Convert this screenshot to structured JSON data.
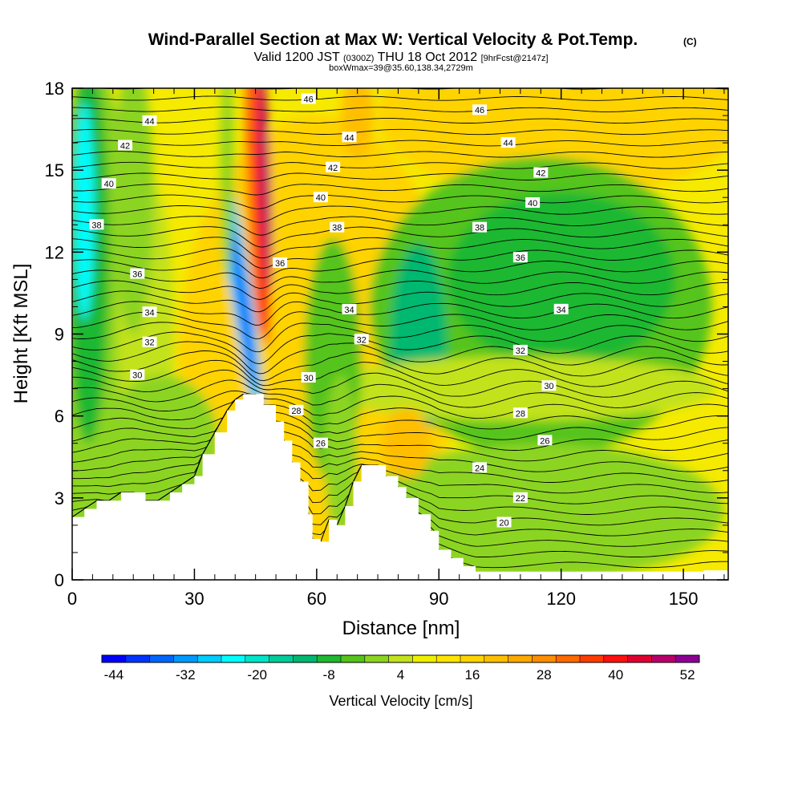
{
  "chart_data": {
    "type": "heatmap",
    "title": "Wind-Parallel Section at Max W: Vertical Velocity & Pot.Temp.",
    "title_mark": "(C)",
    "subtitle": {
      "part1": "Valid 1200 JST ",
      "part2": "(0300Z)",
      "part3": " THU 18 Oct 2012 ",
      "part4": "[9hrFcst@2147z]"
    },
    "subtitle2": "boxWmax=39@35.60,138.34,2729m",
    "xlabel": "Distance [nm]",
    "ylabel": "Height [Kft MSL]",
    "xlim": [
      0,
      161
    ],
    "ylim": [
      0,
      18
    ],
    "xticks": [
      "0",
      "30",
      "60",
      "90",
      "120",
      "150"
    ],
    "yticks": [
      "0",
      "3",
      "6",
      "9",
      "12",
      "15",
      "18"
    ],
    "colorbar": {
      "title": "Vertical Velocity [cm/s]",
      "tick_labels": [
        "-44",
        "-32",
        "-20",
        "-8",
        "4",
        "16",
        "28",
        "40",
        "52"
      ],
      "tick_values": [
        -44,
        -32,
        -20,
        -8,
        4,
        16,
        28,
        40,
        52
      ],
      "bin_width": 4,
      "colors": [
        "#0000ff",
        "#0033ff",
        "#0066ff",
        "#0099ff",
        "#00ccff",
        "#00ffff",
        "#00e5c8",
        "#00cc99",
        "#00b870",
        "#1fb830",
        "#55c41a",
        "#8cd420",
        "#c2e21c",
        "#eef000",
        "#ffe400",
        "#ffd300",
        "#ffbf00",
        "#ffa800",
        "#ff8d00",
        "#ff6a00",
        "#ff3c00",
        "#ff1010",
        "#e00030",
        "#b8006a",
        "#8c0094"
      ]
    },
    "terrain": [
      [
        0,
        2.3
      ],
      [
        3,
        2.6
      ],
      [
        6,
        2.9
      ],
      [
        9,
        2.9
      ],
      [
        12,
        3.2
      ],
      [
        15,
        3.2
      ],
      [
        18,
        2.9
      ],
      [
        21,
        2.9
      ],
      [
        24,
        3.2
      ],
      [
        27,
        3.5
      ],
      [
        30,
        3.8
      ],
      [
        32,
        4.6
      ],
      [
        35,
        5.4
      ],
      [
        38,
        6.2
      ],
      [
        40,
        6.6
      ],
      [
        42,
        6.8
      ],
      [
        45,
        6.8
      ],
      [
        47,
        6.4
      ],
      [
        50,
        5.8
      ],
      [
        52,
        5.1
      ],
      [
        54,
        4.3
      ],
      [
        56,
        3.6
      ],
      [
        58,
        2.4
      ],
      [
        59,
        1.5
      ],
      [
        61,
        1.4
      ],
      [
        63,
        2.2
      ],
      [
        65,
        2.0
      ],
      [
        67,
        2.7
      ],
      [
        69,
        3.6
      ],
      [
        71,
        4.2
      ],
      [
        75,
        4.2
      ],
      [
        77,
        3.8
      ],
      [
        80,
        3.4
      ],
      [
        82,
        3.0
      ],
      [
        85,
        2.4
      ],
      [
        88,
        1.8
      ],
      [
        90,
        1.1
      ],
      [
        93,
        0.8
      ],
      [
        96,
        0.5
      ],
      [
        99,
        0.3
      ],
      [
        110,
        0.3
      ],
      [
        130,
        0.3
      ],
      [
        150,
        0.3
      ],
      [
        155,
        0.35
      ],
      [
        161,
        0.35
      ]
    ],
    "theta_contour_labels": [
      {
        "value": "46",
        "x": 58,
        "y": 17.6
      },
      {
        "value": "46",
        "x": 100,
        "y": 17.2
      },
      {
        "value": "44",
        "x": 19,
        "y": 16.8
      },
      {
        "value": "44",
        "x": 68,
        "y": 16.2
      },
      {
        "value": "44",
        "x": 107,
        "y": 16.0
      },
      {
        "value": "42",
        "x": 13,
        "y": 15.9
      },
      {
        "value": "42",
        "x": 64,
        "y": 15.1
      },
      {
        "value": "42",
        "x": 115,
        "y": 14.9
      },
      {
        "value": "40",
        "x": 9,
        "y": 14.5
      },
      {
        "value": "40",
        "x": 61,
        "y": 14.0
      },
      {
        "value": "40",
        "x": 113,
        "y": 13.8
      },
      {
        "value": "38",
        "x": 6,
        "y": 13.0
      },
      {
        "value": "38",
        "x": 65,
        "y": 12.9
      },
      {
        "value": "38",
        "x": 100,
        "y": 12.9
      },
      {
        "value": "36",
        "x": 16,
        "y": 11.2
      },
      {
        "value": "36",
        "x": 51,
        "y": 11.6
      },
      {
        "value": "36",
        "x": 110,
        "y": 11.8
      },
      {
        "value": "34",
        "x": 19,
        "y": 9.8
      },
      {
        "value": "34",
        "x": 68,
        "y": 9.9
      },
      {
        "value": "34",
        "x": 120,
        "y": 9.9
      },
      {
        "value": "32",
        "x": 19,
        "y": 8.7
      },
      {
        "value": "32",
        "x": 71,
        "y": 8.8
      },
      {
        "value": "32",
        "x": 110,
        "y": 8.4
      },
      {
        "value": "30",
        "x": 16,
        "y": 7.5
      },
      {
        "value": "30",
        "x": 58,
        "y": 7.4
      },
      {
        "value": "30",
        "x": 117,
        "y": 7.1
      },
      {
        "value": "28",
        "x": 55,
        "y": 6.2
      },
      {
        "value": "28",
        "x": 110,
        "y": 6.1
      },
      {
        "value": "26",
        "x": 61,
        "y": 5.0
      },
      {
        "value": "26",
        "x": 116,
        "y": 5.1
      },
      {
        "value": "24",
        "x": 100,
        "y": 4.1
      },
      {
        "value": "22",
        "x": 110,
        "y": 3.0
      },
      {
        "value": "20",
        "x": 106,
        "y": 2.1
      }
    ]
  }
}
